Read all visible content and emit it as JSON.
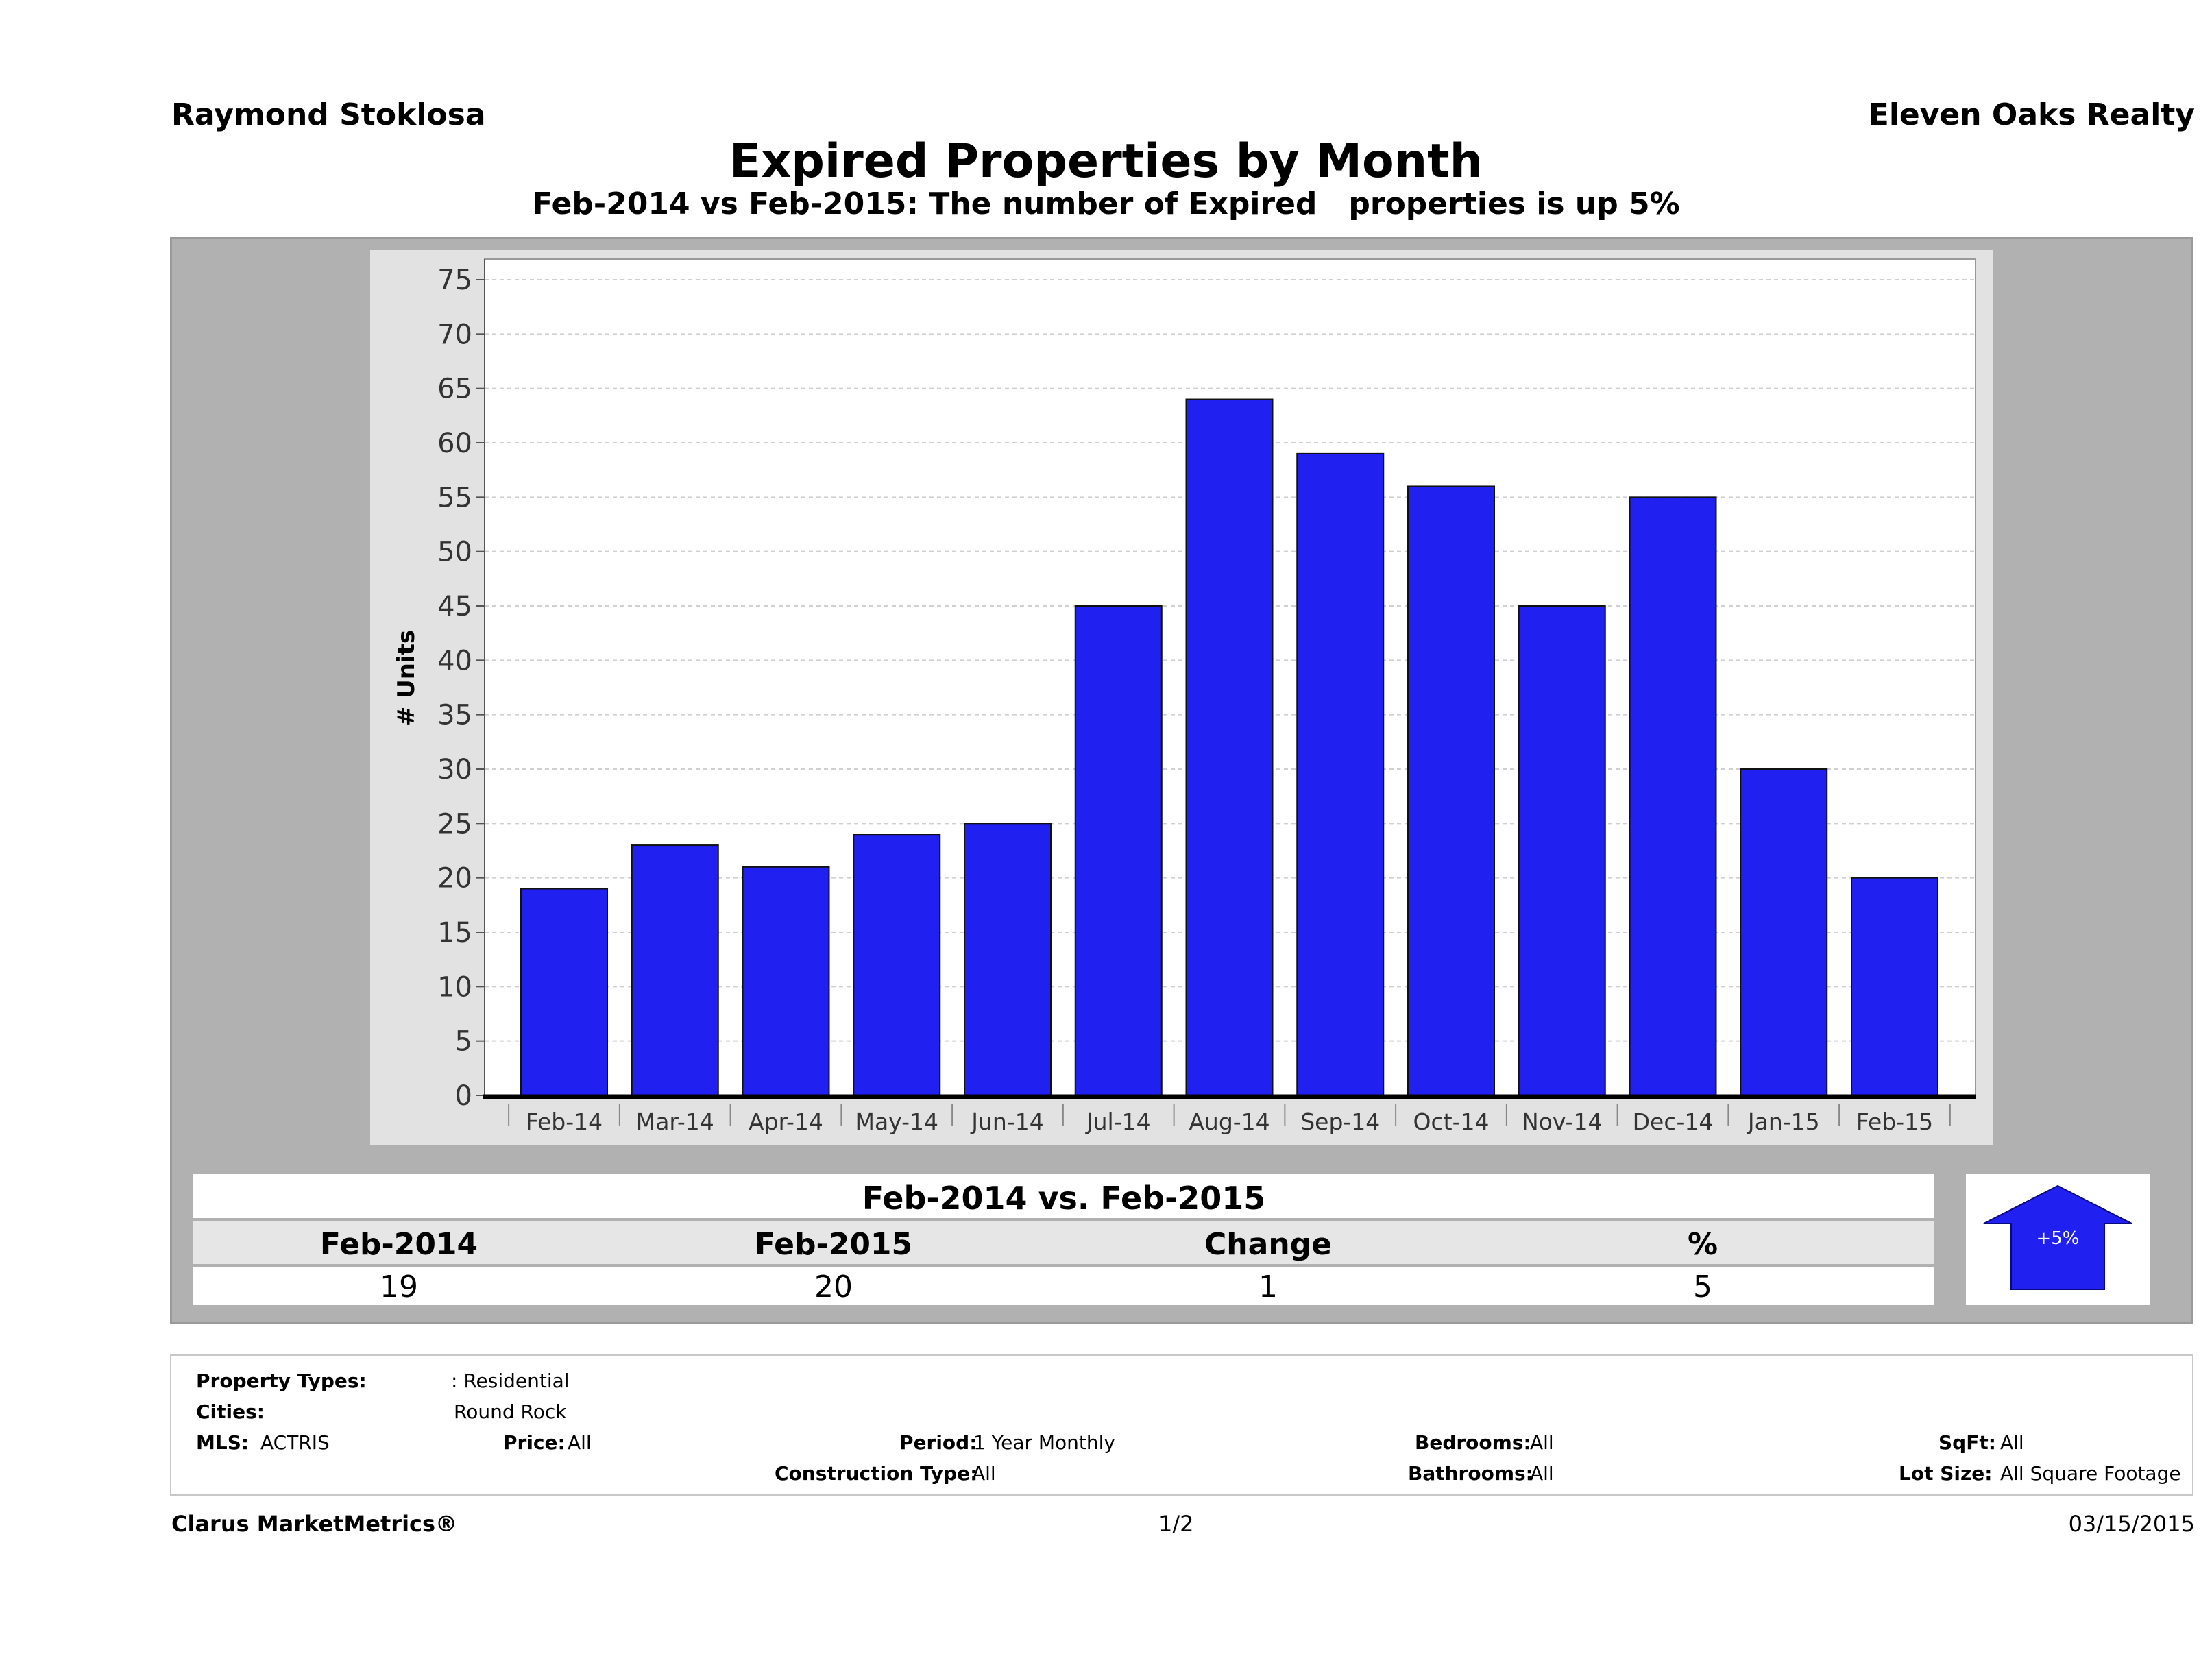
{
  "header": {
    "agent_name": "Raymond Stoklosa",
    "company_name": "Eleven Oaks Realty",
    "title": "Expired Properties by Month",
    "subtitle": "Feb-2014 vs Feb-2015: The number of Expired   properties is up 5%"
  },
  "chart_data": {
    "type": "bar",
    "categories": [
      "Feb-14",
      "Mar-14",
      "Apr-14",
      "May-14",
      "Jun-14",
      "Jul-14",
      "Aug-14",
      "Sep-14",
      "Oct-14",
      "Nov-14",
      "Dec-14",
      "Jan-15",
      "Feb-15"
    ],
    "values": [
      19,
      23,
      21,
      24,
      25,
      45,
      64,
      59,
      56,
      45,
      55,
      30,
      20
    ],
    "ylabel": "# Units",
    "xlabel": "",
    "ylim": [
      0,
      75
    ],
    "yticks": [
      0,
      5,
      10,
      15,
      20,
      25,
      30,
      35,
      40,
      45,
      50,
      55,
      60,
      65,
      70,
      75
    ],
    "grid": true,
    "bar_color": "#2020f0"
  },
  "comparison": {
    "title": "Feb-2014 vs. Feb-2015",
    "headers": [
      "Feb-2014",
      "Feb-2015",
      "Change",
      "%"
    ],
    "values": [
      "19",
      "20",
      "1",
      "5"
    ],
    "arrow_label": "+5%",
    "arrow_color": "#2020f0"
  },
  "criteria": {
    "property_types_label": "Property Types:",
    "property_types_value": ": Residential",
    "cities_label": "Cities:",
    "cities_value": "Round Rock",
    "mls_label": "MLS:",
    "mls_value": "ACTRIS",
    "price_label": "Price:",
    "price_value": "All",
    "period_label": "Period:",
    "period_value": "1 Year Monthly",
    "construction_label": "Construction Type:",
    "construction_value": "All",
    "bedrooms_label": "Bedrooms:",
    "bedrooms_value": "All",
    "bathrooms_label": "Bathrooms:",
    "bathrooms_value": "All",
    "sqft_label": "SqFt:",
    "sqft_value": "All",
    "lot_size_label": "Lot Size:",
    "lot_size_value": "All Square Footage"
  },
  "footer": {
    "brand": "Clarus MarketMetrics®",
    "page": "1/2",
    "date": "03/15/2015"
  }
}
